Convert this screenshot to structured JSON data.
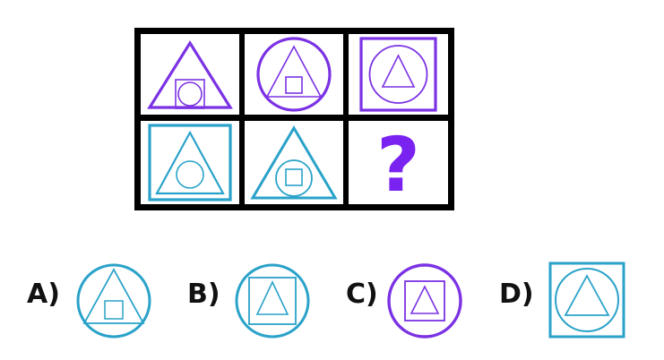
{
  "colors": {
    "purple": "#7b32e4",
    "cyan": "#2aa2c9",
    "question": "#7a22f0",
    "grid_border": "#000000"
  },
  "grid": {
    "cells": [
      {
        "name": "row1-col1",
        "shapes": [
          "triangle",
          "square",
          "circle"
        ],
        "color": "purple"
      },
      {
        "name": "row1-col2",
        "shapes": [
          "circle",
          "triangle",
          "square"
        ],
        "color": "purple"
      },
      {
        "name": "row1-col3",
        "shapes": [
          "square",
          "circle",
          "triangle"
        ],
        "color": "purple"
      },
      {
        "name": "row2-col1",
        "shapes": [
          "square",
          "triangle",
          "circle"
        ],
        "color": "cyan"
      },
      {
        "name": "row2-col2",
        "shapes": [
          "triangle",
          "circle",
          "square"
        ],
        "color": "cyan"
      },
      {
        "name": "row2-col3",
        "question_mark": "?",
        "color": "question"
      }
    ]
  },
  "options": [
    {
      "label": "A)",
      "shapes": [
        "circle",
        "triangle",
        "square"
      ],
      "color": "cyan"
    },
    {
      "label": "B)",
      "shapes": [
        "circle",
        "square",
        "triangle"
      ],
      "color": "cyan"
    },
    {
      "label": "C)",
      "shapes": [
        "circle",
        "square",
        "triangle"
      ],
      "color": "purple"
    },
    {
      "label": "D)",
      "shapes": [
        "square",
        "circle",
        "triangle"
      ],
      "color": "cyan"
    }
  ]
}
